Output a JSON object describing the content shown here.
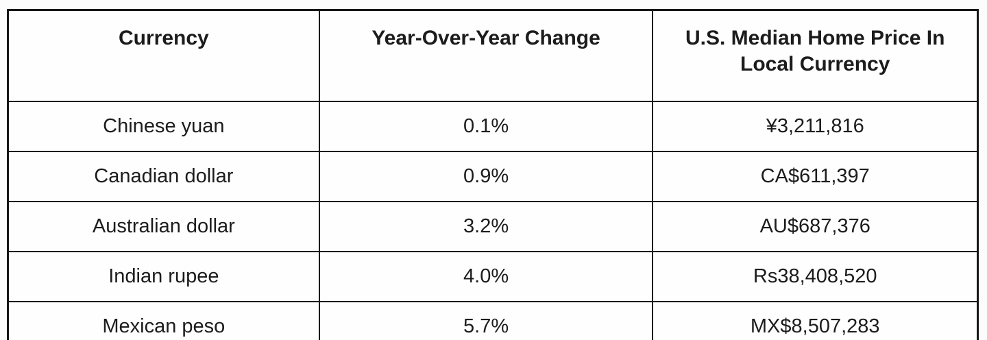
{
  "chart_data": {
    "type": "table",
    "columns": [
      "Currency",
      "Year-Over-Year Change",
      "U.S. Median Home Price In Local Currency"
    ],
    "rows": [
      {
        "currency": "Chinese yuan",
        "yoy_change": "0.1%",
        "median_home_price": "¥3,211,816"
      },
      {
        "currency": "Canadian dollar",
        "yoy_change": "0.9%",
        "median_home_price": "CA$611,397"
      },
      {
        "currency": "Australian dollar",
        "yoy_change": "3.2%",
        "median_home_price": "AU$687,376"
      },
      {
        "currency": "Indian rupee",
        "yoy_change": "4.0%",
        "median_home_price": "Rs38,408,520"
      },
      {
        "currency": "Mexican peso",
        "yoy_change": "5.7%",
        "median_home_price": "MX$8,507,283"
      }
    ],
    "layout": {
      "grid": true,
      "border_color": "#161616",
      "background_color": "#fcfcfc",
      "text_color": "#1c1c1c",
      "header_align": "center",
      "cell_align": "center"
    }
  }
}
